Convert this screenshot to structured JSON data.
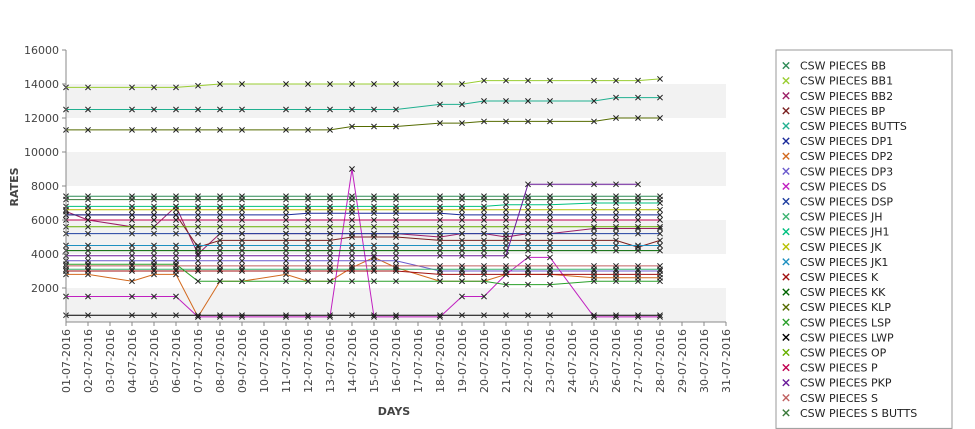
{
  "chart_data": {
    "type": "line",
    "title": "",
    "xlabel": "DAYS",
    "ylabel": "RATES",
    "ylim": [
      0,
      16000
    ],
    "yticks": [
      2000,
      4000,
      6000,
      8000,
      10000,
      12000,
      14000,
      16000
    ],
    "grid": "alternating horizontal bands",
    "legend_position": "right",
    "marker": "x",
    "categories": [
      "01-07-2016",
      "02-07-2016",
      "03-07-2016",
      "04-07-2016",
      "05-07-2016",
      "06-07-2016",
      "07-07-2016",
      "08-07-2016",
      "09-07-2016",
      "10-07-2016",
      "11-07-2016",
      "12-07-2016",
      "13-07-2016",
      "14-07-2016",
      "15-07-2016",
      "16-07-2016",
      "17-07-2016",
      "18-07-2016",
      "19-07-2016",
      "20-07-2016",
      "21-07-2016",
      "22-07-2016",
      "23-07-2016",
      "24-07-2016",
      "25-07-2016",
      "26-07-2016",
      "27-07-2016",
      "28-07-2016",
      "29-07-2016",
      "30-07-2016",
      "31-07-2016"
    ],
    "series": [
      {
        "name": "CSW PIECES BB",
        "color": "#2e8b57",
        "values": [
          7400,
          7400,
          null,
          7400,
          7400,
          7400,
          7400,
          7400,
          7400,
          null,
          7400,
          7400,
          7400,
          7400,
          7400,
          7400,
          null,
          7400,
          7400,
          7400,
          7400,
          7400,
          7400,
          null,
          7400,
          7400,
          7400,
          7400,
          null,
          null,
          null
        ]
      },
      {
        "name": "CSW PIECES BB1",
        "color": "#9acd32",
        "values": [
          13800,
          13800,
          null,
          13800,
          13800,
          13800,
          13900,
          14000,
          14000,
          null,
          14000,
          14000,
          14000,
          14000,
          14000,
          14000,
          null,
          14000,
          14000,
          14200,
          14200,
          14200,
          14200,
          null,
          14200,
          14200,
          14200,
          14300,
          null,
          null,
          null
        ]
      },
      {
        "name": "CSW PIECES BB2",
        "color": "#9b1f66",
        "values": [
          6500,
          6000,
          null,
          5600,
          5600,
          6800,
          4000,
          5200,
          5200,
          null,
          5200,
          5200,
          5200,
          5200,
          5200,
          5200,
          null,
          5000,
          5200,
          5200,
          5000,
          5200,
          5200,
          null,
          5500,
          5500,
          5500,
          5500,
          null,
          null,
          null
        ]
      },
      {
        "name": "CSW PIECES BP",
        "color": "#7a2020",
        "values": [
          6300,
          6300,
          null,
          6300,
          6300,
          6300,
          4400,
          4800,
          4800,
          null,
          4800,
          4800,
          4800,
          5000,
          5000,
          5000,
          null,
          4800,
          4800,
          4800,
          4800,
          4800,
          4800,
          null,
          4800,
          4800,
          4400,
          4800,
          null,
          null,
          null
        ]
      },
      {
        "name": "CSW PIECES BUTTS",
        "color": "#20b090",
        "values": [
          12500,
          12500,
          null,
          12500,
          12500,
          12500,
          12500,
          12500,
          12500,
          null,
          12500,
          12500,
          12500,
          12500,
          12500,
          12500,
          null,
          12800,
          12800,
          13000,
          13000,
          13000,
          13000,
          null,
          13000,
          13200,
          13200,
          13200,
          null,
          null,
          null
        ]
      },
      {
        "name": "CSW PIECES DP1",
        "color": "#1a2a9a",
        "values": [
          6300,
          6300,
          null,
          6300,
          6300,
          6300,
          6300,
          6300,
          6300,
          null,
          6300,
          6400,
          6400,
          6400,
          6400,
          6400,
          null,
          6400,
          6300,
          6300,
          6300,
          6300,
          6300,
          null,
          6300,
          6300,
          6300,
          6300,
          null,
          null,
          null
        ]
      },
      {
        "name": "CSW PIECES DP2",
        "color": "#d2691e",
        "values": [
          2800,
          2800,
          null,
          2400,
          2800,
          2800,
          300,
          2400,
          2400,
          null,
          2800,
          2400,
          2400,
          3200,
          3800,
          3200,
          null,
          2400,
          2400,
          2400,
          2800,
          2800,
          2800,
          null,
          2600,
          2600,
          2600,
          2600,
          null,
          null,
          null
        ]
      },
      {
        "name": "CSW PIECES DP3",
        "color": "#6a5acd",
        "values": [
          3600,
          3600,
          null,
          3600,
          3600,
          3600,
          3600,
          3600,
          3600,
          null,
          3600,
          3600,
          3600,
          3600,
          3600,
          3600,
          null,
          3000,
          3000,
          3000,
          3000,
          3000,
          3000,
          null,
          3000,
          3000,
          3000,
          3000,
          null,
          null,
          null
        ]
      },
      {
        "name": "CSW PIECES DS",
        "color": "#c020c0",
        "values": [
          1500,
          1500,
          null,
          1500,
          1500,
          1500,
          300,
          300,
          300,
          null,
          300,
          300,
          300,
          9000,
          300,
          300,
          null,
          300,
          1500,
          1500,
          2800,
          3800,
          3800,
          null,
          300,
          300,
          300,
          300,
          null,
          null,
          null
        ]
      },
      {
        "name": "CSW PIECES DSP",
        "color": "#1f3fa0",
        "values": [
          5200,
          5200,
          null,
          5200,
          5200,
          5200,
          5200,
          5200,
          5200,
          null,
          5200,
          5200,
          5200,
          5200,
          5200,
          5200,
          null,
          5200,
          5200,
          5200,
          5200,
          5200,
          5200,
          null,
          5200,
          5200,
          5200,
          5200,
          null,
          null,
          null
        ]
      },
      {
        "name": "CSW PIECES JH",
        "color": "#3cb371",
        "values": [
          3100,
          3100,
          null,
          3100,
          3100,
          3100,
          3100,
          3100,
          3100,
          null,
          3100,
          3100,
          3100,
          3100,
          3100,
          3100,
          null,
          3100,
          3100,
          3100,
          3100,
          3100,
          3100,
          null,
          3100,
          3100,
          3100,
          3100,
          null,
          null,
          null
        ]
      },
      {
        "name": "CSW PIECES JH1",
        "color": "#00c080",
        "values": [
          6800,
          6800,
          null,
          6800,
          6800,
          6800,
          6800,
          6800,
          6800,
          null,
          6800,
          6800,
          6800,
          6800,
          6800,
          6800,
          null,
          6800,
          6800,
          6800,
          6900,
          6900,
          6900,
          null,
          7000,
          7000,
          7000,
          7000,
          null,
          null,
          null
        ]
      },
      {
        "name": "CSW PIECES JK",
        "color": "#b8c000",
        "values": [
          6600,
          6600,
          null,
          6600,
          6600,
          6600,
          6600,
          6600,
          6600,
          null,
          6600,
          6600,
          6600,
          6600,
          6600,
          6600,
          null,
          6600,
          6600,
          6600,
          6600,
          6600,
          6600,
          null,
          6600,
          6600,
          6600,
          6600,
          null,
          null,
          null
        ]
      },
      {
        "name": "CSW PIECES JK1",
        "color": "#1e90c0",
        "values": [
          4500,
          4500,
          null,
          4500,
          4500,
          4500,
          4500,
          4500,
          4500,
          null,
          4500,
          4500,
          4500,
          4500,
          4500,
          4500,
          null,
          4500,
          4500,
          4500,
          4500,
          4500,
          4500,
          null,
          4500,
          4500,
          4500,
          4500,
          null,
          null,
          null
        ]
      },
      {
        "name": "CSW PIECES K",
        "color": "#a01010",
        "values": [
          3000,
          3000,
          null,
          3000,
          3000,
          3000,
          3000,
          3000,
          3000,
          null,
          3000,
          3000,
          3000,
          3000,
          3000,
          3000,
          null,
          2800,
          2800,
          2800,
          2800,
          2800,
          2800,
          null,
          2800,
          2800,
          2800,
          2800,
          null,
          null,
          null
        ]
      },
      {
        "name": "CSW PIECES KK",
        "color": "#006400",
        "values": [
          4200,
          4200,
          null,
          4200,
          4200,
          4200,
          4200,
          4200,
          4200,
          null,
          4200,
          4200,
          4200,
          4200,
          4200,
          4200,
          null,
          4200,
          4200,
          4200,
          4200,
          4200,
          4200,
          null,
          4200,
          4200,
          4200,
          4200,
          null,
          null,
          null
        ]
      },
      {
        "name": "CSW PIECES KLP",
        "color": "#556b00",
        "values": [
          11300,
          11300,
          null,
          11300,
          11300,
          11300,
          11300,
          11300,
          11300,
          null,
          11300,
          11300,
          11300,
          11500,
          11500,
          11500,
          null,
          11700,
          11700,
          11800,
          11800,
          11800,
          11800,
          null,
          11800,
          12000,
          12000,
          12000,
          null,
          null,
          null
        ]
      },
      {
        "name": "CSW PIECES LSP",
        "color": "#2aa02a",
        "values": [
          3400,
          3400,
          null,
          3400,
          3400,
          3400,
          2400,
          2400,
          2400,
          null,
          2400,
          2400,
          2400,
          2400,
          2400,
          2400,
          null,
          2400,
          2400,
          2400,
          2200,
          2200,
          2200,
          null,
          2400,
          2400,
          2400,
          2400,
          null,
          null,
          null
        ]
      },
      {
        "name": "CSW PIECES LWP",
        "color": "#000000",
        "values": [
          400,
          400,
          null,
          400,
          400,
          400,
          400,
          400,
          400,
          null,
          400,
          400,
          400,
          400,
          400,
          400,
          null,
          400,
          400,
          400,
          400,
          400,
          400,
          null,
          400,
          400,
          400,
          400,
          null,
          null,
          null
        ]
      },
      {
        "name": "CSW PIECES OP",
        "color": "#66b000",
        "values": [
          5600,
          5600,
          null,
          5600,
          5600,
          5600,
          5600,
          5600,
          5600,
          null,
          5600,
          5600,
          5600,
          5600,
          5600,
          5600,
          null,
          5600,
          5600,
          5600,
          5600,
          5600,
          5600,
          null,
          5600,
          5600,
          5600,
          5600,
          null,
          null,
          null
        ]
      },
      {
        "name": "CSW PIECES P",
        "color": "#c00050",
        "values": [
          6000,
          6000,
          null,
          6000,
          6000,
          6000,
          6000,
          6000,
          6000,
          null,
          6000,
          6000,
          6000,
          6000,
          6000,
          6000,
          null,
          6000,
          6000,
          6000,
          6000,
          6000,
          6000,
          null,
          6000,
          6000,
          6000,
          6000,
          null,
          null,
          null
        ]
      },
      {
        "name": "CSW PIECES PKP",
        "color": "#6a1b9a",
        "values": [
          3900,
          3900,
          null,
          3900,
          3900,
          3900,
          3900,
          3900,
          3900,
          null,
          3900,
          3900,
          3900,
          3900,
          3900,
          3900,
          null,
          3900,
          3900,
          3900,
          3900,
          8100,
          8100,
          null,
          8100,
          8100,
          8100,
          null,
          null,
          null,
          null
        ]
      },
      {
        "name": "CSW PIECES S",
        "color": "#c06060",
        "values": [
          3300,
          3300,
          null,
          3300,
          3300,
          3300,
          3300,
          3300,
          3300,
          null,
          3300,
          3300,
          3300,
          3300,
          3300,
          3300,
          null,
          3300,
          3300,
          3300,
          3300,
          3300,
          3300,
          null,
          3300,
          3300,
          3300,
          3300,
          null,
          null,
          null
        ]
      },
      {
        "name": "CSW PIECES S BUTTS",
        "color": "#3a7a3a",
        "values": [
          7200,
          7200,
          null,
          7200,
          7200,
          7200,
          7200,
          7200,
          7200,
          null,
          7200,
          7200,
          7200,
          7200,
          7200,
          7200,
          null,
          7200,
          7200,
          7200,
          7200,
          7200,
          7200,
          null,
          7200,
          7200,
          7200,
          7200,
          null,
          null,
          null
        ]
      }
    ]
  }
}
